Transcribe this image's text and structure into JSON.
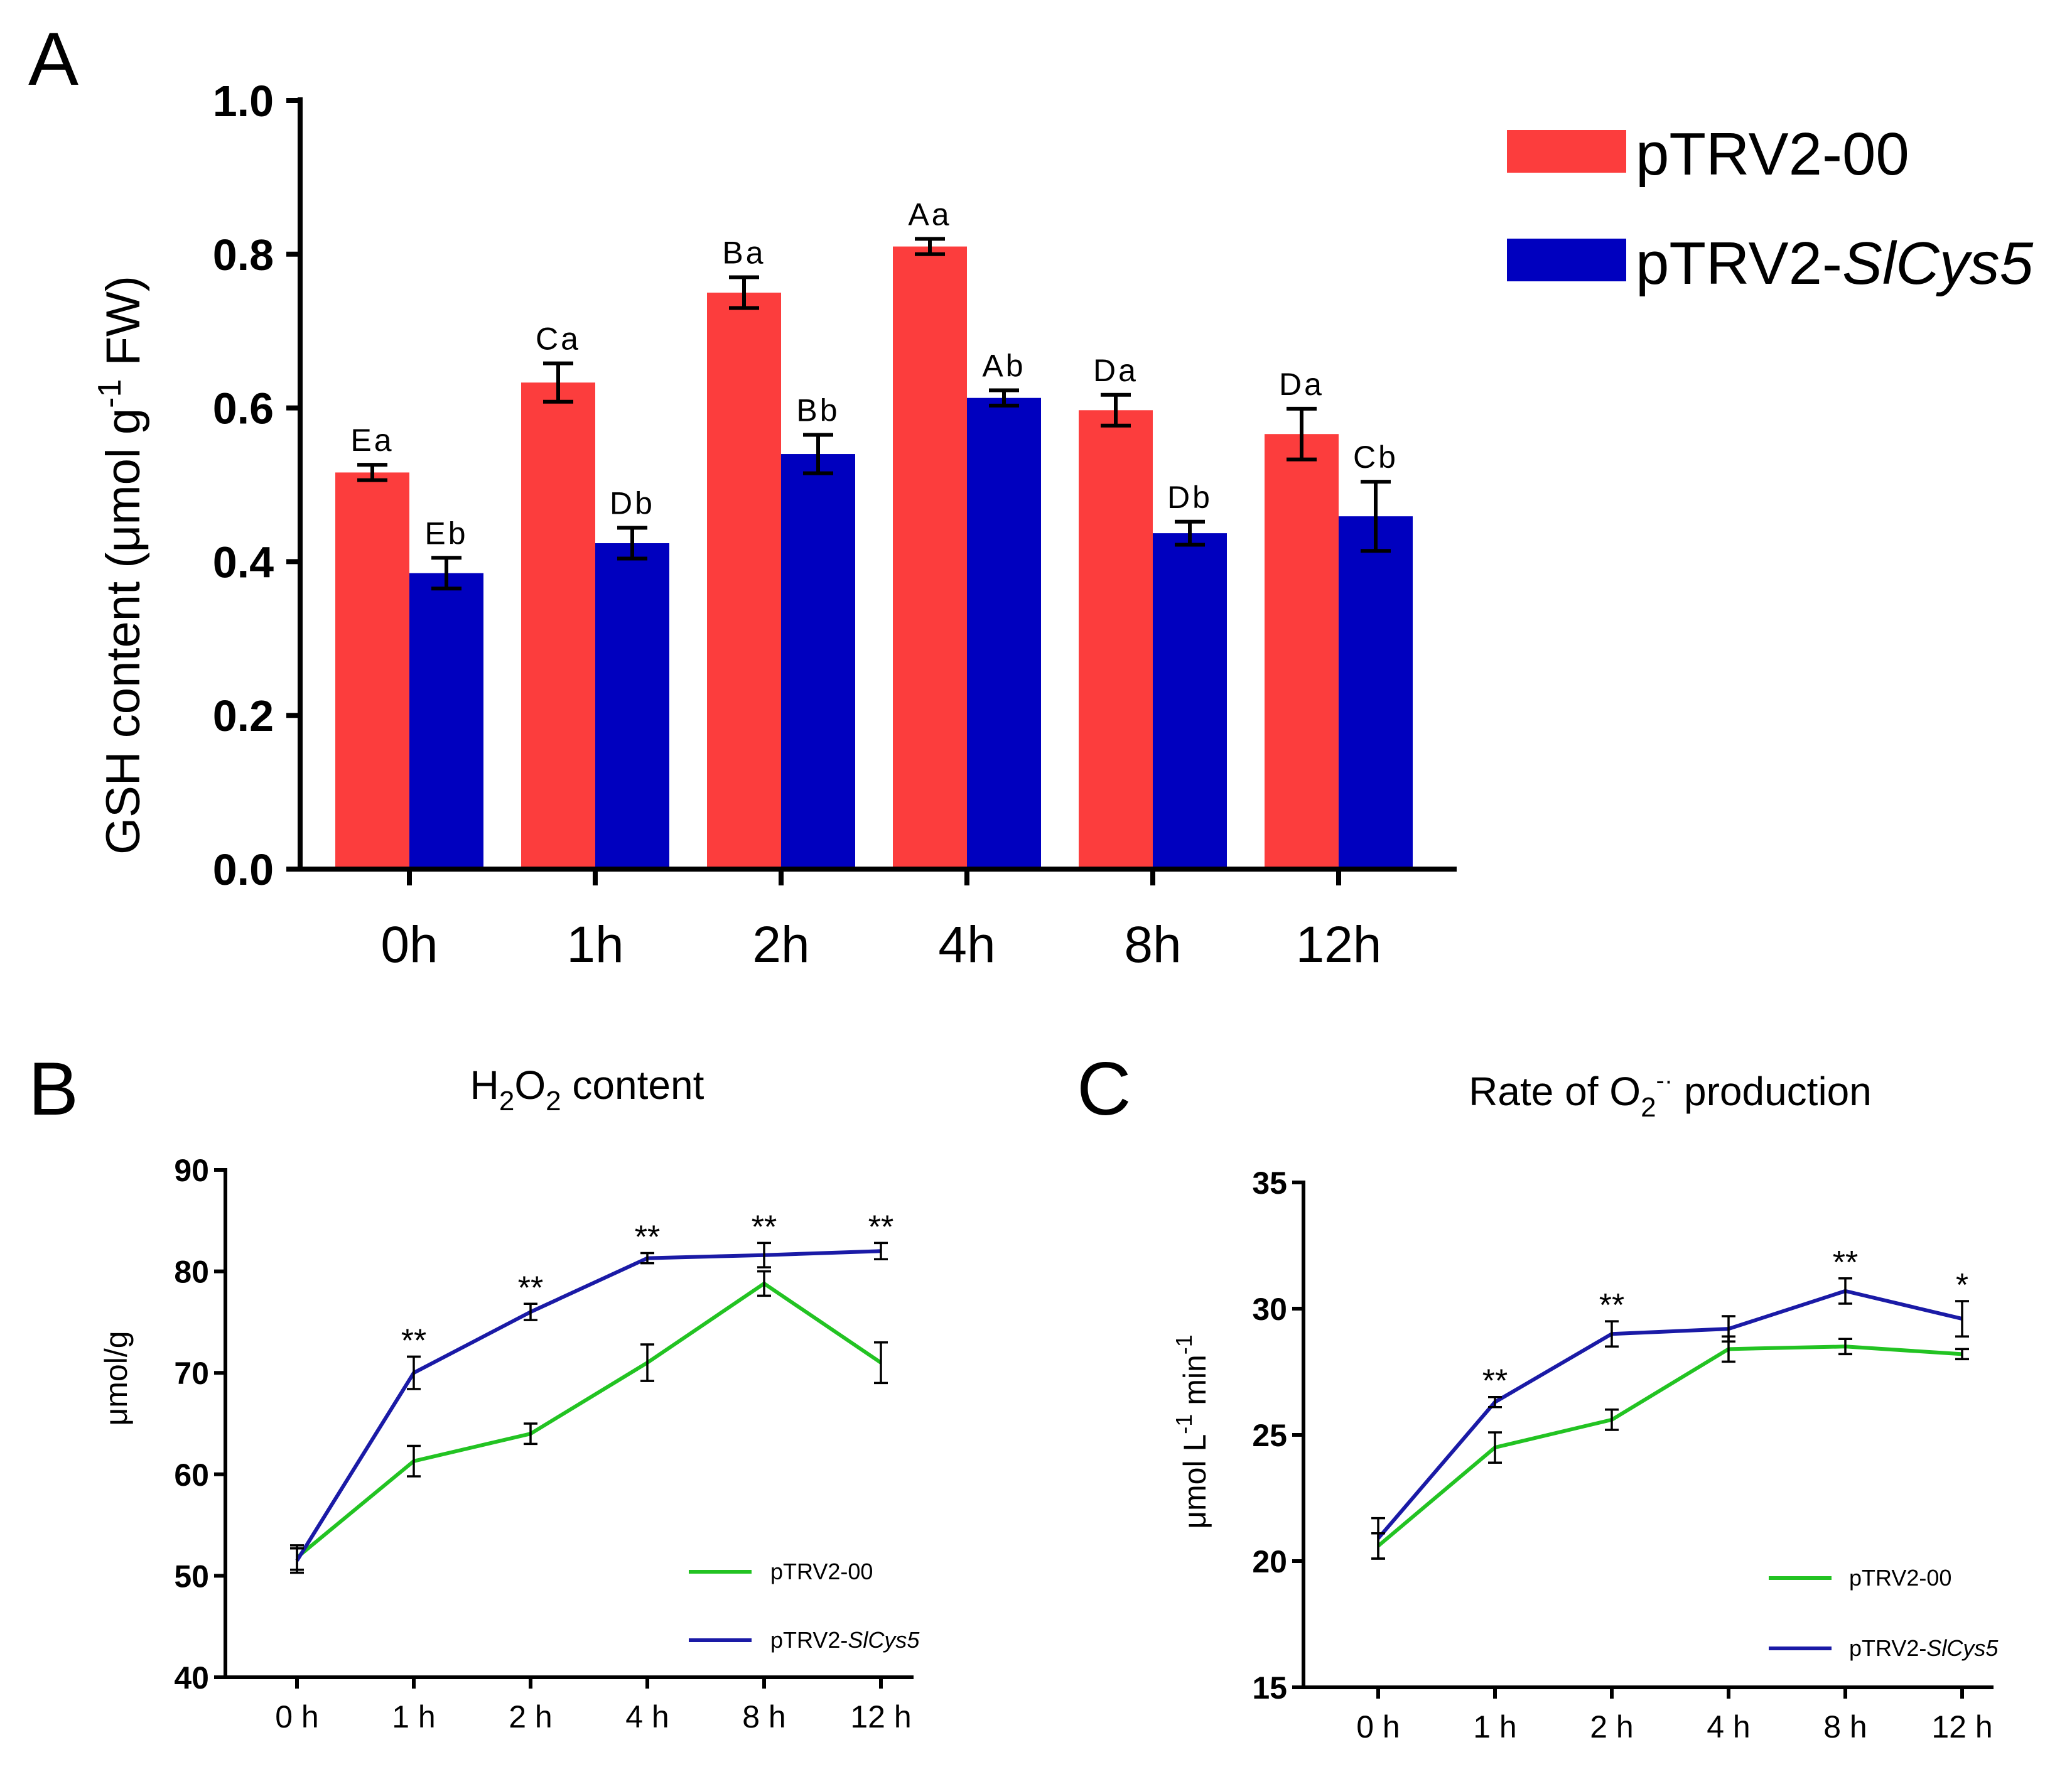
{
  "chart_data": [
    {
      "panel": "A",
      "type": "bar",
      "title": "",
      "ylabel": "GSH content (μmol g",
      "ylabel_sup": "-1",
      "ylabel_tail": " FW)",
      "xlabel": "",
      "ylim": [
        0,
        1.0
      ],
      "yticks": [
        "0.0",
        "0.2",
        "0.4",
        "0.6",
        "0.8",
        "1.0"
      ],
      "categories": [
        "0h",
        "1h",
        "2h",
        "4h",
        "8h",
        "12h"
      ],
      "series": [
        {
          "name": "pTRV2-00",
          "color": "#fc3d3d",
          "values": [
            0.516,
            0.633,
            0.75,
            0.81,
            0.597,
            0.566
          ],
          "errors": [
            0.01,
            0.025,
            0.02,
            0.01,
            0.02,
            0.033
          ],
          "labels": [
            "Ea",
            "Ca",
            "Ba",
            "Aa",
            "Da",
            "Da"
          ]
        },
        {
          "name": "pTRV2-",
          "name_italic": "SlCys5",
          "color": "#0000bf",
          "values": [
            0.385,
            0.424,
            0.54,
            0.613,
            0.437,
            0.459
          ],
          "errors": [
            0.02,
            0.02,
            0.025,
            0.01,
            0.015,
            0.045
          ],
          "labels": [
            "Eb",
            "Db",
            "Bb",
            "Ab",
            "Db",
            "Cb"
          ]
        }
      ]
    },
    {
      "panel": "B",
      "type": "line",
      "title_main": "H",
      "title_sub1": "2",
      "title_mid": "O",
      "title_sub2": "2",
      "title_tail": " content",
      "ylabel": "μmol/g",
      "ylim": [
        40,
        90
      ],
      "yticks": [
        "40",
        "50",
        "60",
        "70",
        "80",
        "90"
      ],
      "categories": [
        "0 h",
        "1 h",
        "2 h",
        "4 h",
        "8 h",
        "12 h"
      ],
      "series": [
        {
          "name": "pTRV2-00",
          "color": "#22c322",
          "values": [
            51.8,
            61.3,
            64.0,
            71.0,
            78.8,
            71.0
          ],
          "errors": [
            1.2,
            1.5,
            1.0,
            1.8,
            1.2,
            2.0
          ]
        },
        {
          "name": "pTRV2-",
          "name_italic": "SlCys5",
          "color": "#1a1aa6",
          "values": [
            51.5,
            70.0,
            76.0,
            81.3,
            81.6,
            82.0
          ],
          "errors": [
            1.2,
            1.6,
            0.8,
            0.5,
            1.2,
            0.8
          ]
        }
      ],
      "significance": [
        "",
        "**",
        "**",
        "**",
        "**",
        "**"
      ]
    },
    {
      "panel": "C",
      "type": "line",
      "title_main": "Rate of O",
      "title_sub1": "2",
      "title_sup": "-·",
      "title_tail": " production",
      "ylabel": "μmol L",
      "ylabel_sup1": "-1",
      "ylabel_mid": " min",
      "ylabel_sup2": "-1",
      "ylim": [
        15,
        35
      ],
      "yticks": [
        "15",
        "20",
        "25",
        "30",
        "35"
      ],
      "categories": [
        "0 h",
        "1 h",
        "2 h",
        "4 h",
        "8 h",
        "12 h"
      ],
      "series": [
        {
          "name": "pTRV2-00",
          "color": "#22c322",
          "values": [
            20.6,
            24.5,
            25.6,
            28.4,
            28.5,
            28.2
          ],
          "errors": [
            0.5,
            0.6,
            0.4,
            0.5,
            0.3,
            0.2
          ]
        },
        {
          "name": "pTRV2-",
          "name_italic": "SlCys5",
          "color": "#1a1aa6",
          "values": [
            20.9,
            26.3,
            29.0,
            29.2,
            30.7,
            29.6
          ],
          "errors": [
            0.8,
            0.2,
            0.5,
            0.5,
            0.5,
            0.7
          ]
        }
      ],
      "significance": [
        "",
        "**",
        "**",
        "",
        "**",
        "*"
      ]
    }
  ],
  "panel_letters": [
    "A",
    "B",
    "C"
  ]
}
